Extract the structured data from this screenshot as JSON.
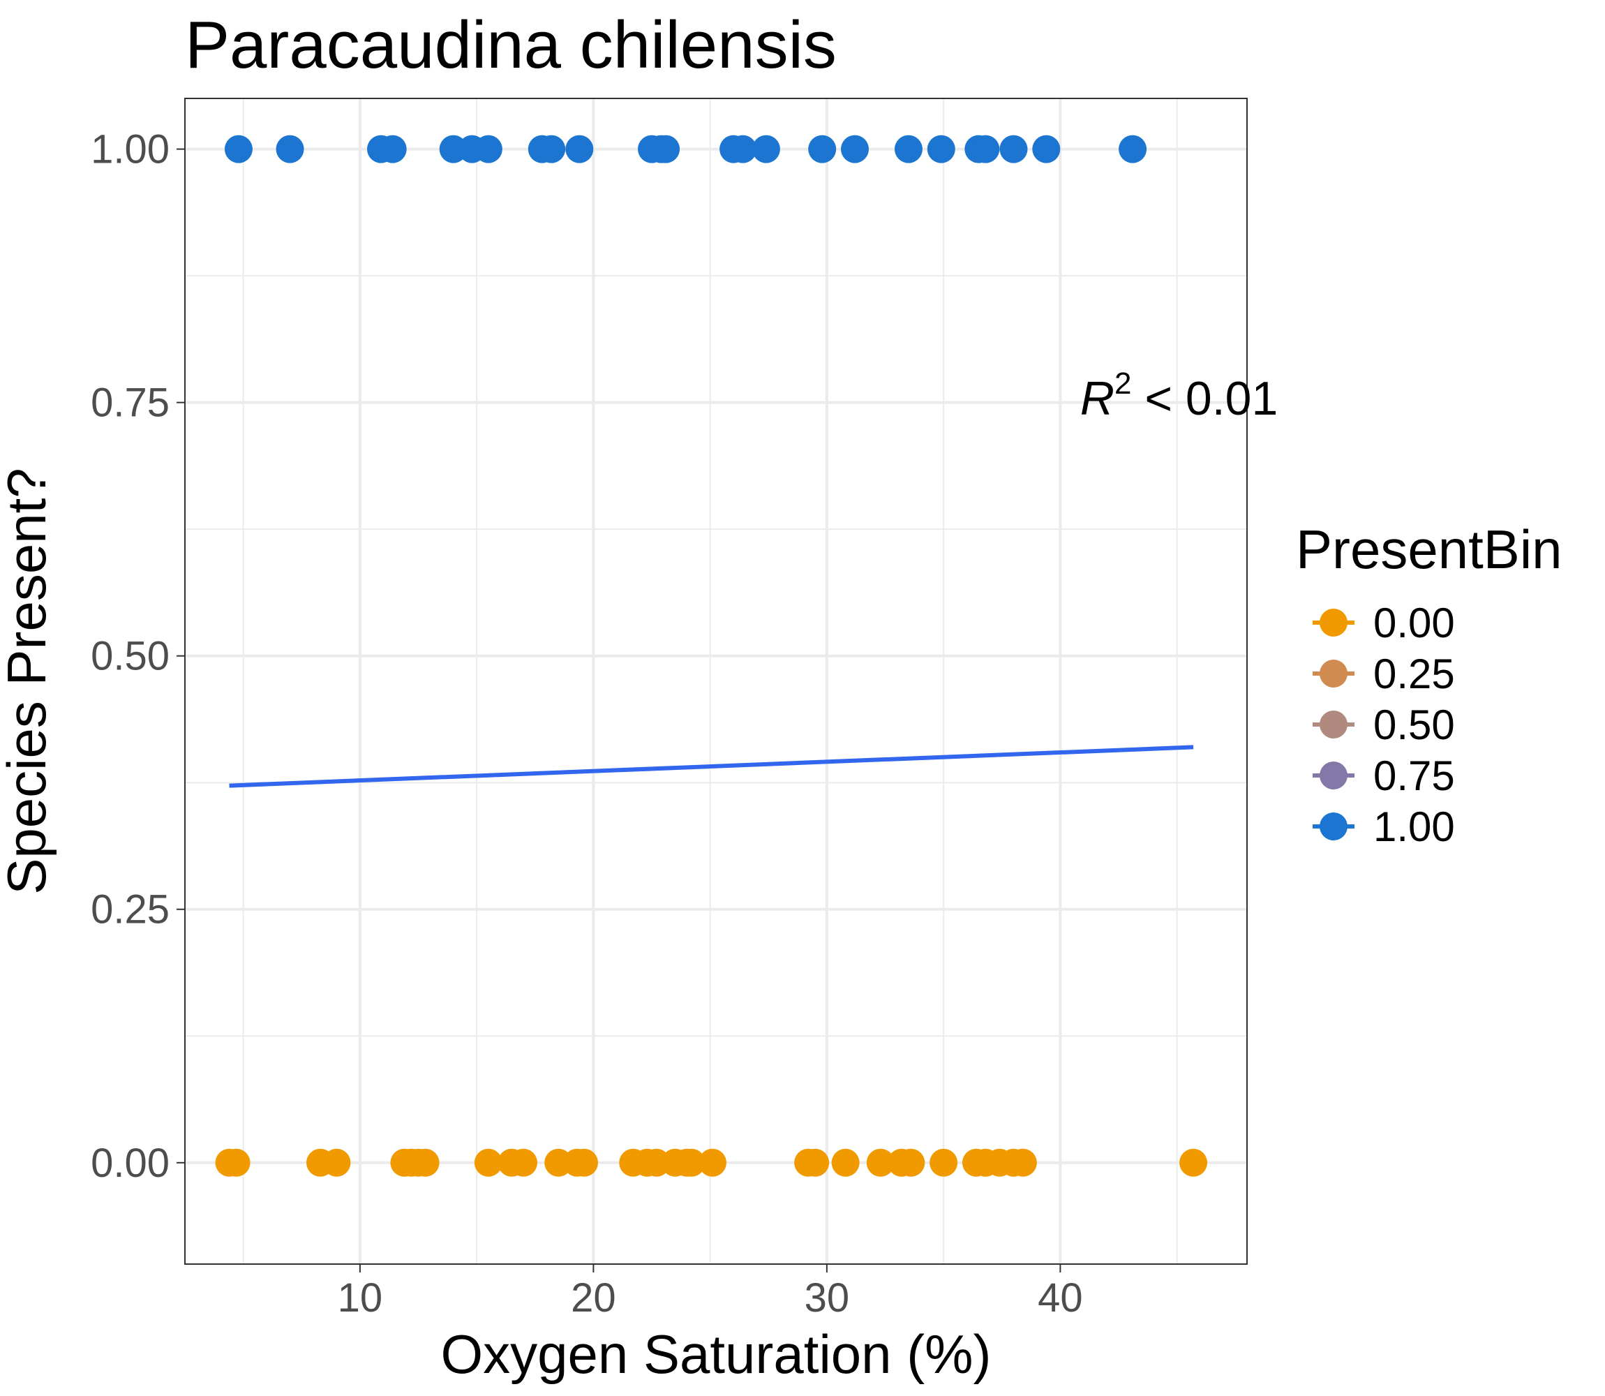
{
  "chart_data": {
    "type": "scatter",
    "title": "Paracaudina chilensis",
    "xlabel": "Oxygen Saturation (%)",
    "ylabel": "Species Present?",
    "xlim": [
      2.5,
      48
    ],
    "ylim": [
      -0.1,
      1.05
    ],
    "x_ticks": [
      10,
      20,
      30,
      40
    ],
    "x_minor_ticks": [
      5,
      15,
      25,
      35,
      45
    ],
    "y_ticks": [
      0.0,
      0.25,
      0.5,
      0.75,
      1.0
    ],
    "y_tick_labels": [
      "0.00",
      "0.25",
      "0.50",
      "0.75",
      "1.00"
    ],
    "y_minor_ticks": [
      0.125,
      0.375,
      0.625,
      0.875
    ],
    "grid": true,
    "annotation": {
      "base": "R",
      "sup": "2",
      "rest": " < 0.01",
      "x": 42,
      "y": 0.74
    },
    "legend": {
      "title": "PresentBin",
      "position": "right",
      "entries": [
        {
          "label": "0.00",
          "color": "#F09A00"
        },
        {
          "label": "0.25",
          "color": "#D08C50"
        },
        {
          "label": "0.50",
          "color": "#B08A7E"
        },
        {
          "label": "0.75",
          "color": "#8378A8"
        },
        {
          "label": "1.00",
          "color": "#1C75D0"
        }
      ]
    },
    "series": [
      {
        "value": 1.0,
        "color": "#1C75D0",
        "x": [
          4.8,
          7.0,
          10.9,
          11.4,
          14.0,
          14.8,
          15.5,
          17.8,
          18.2,
          19.4,
          22.5,
          22.9,
          23.1,
          26.0,
          26.4,
          27.4,
          29.8,
          31.2,
          33.5,
          34.9,
          36.5,
          36.8,
          38.0,
          39.4,
          43.1
        ],
        "y": [
          1,
          1,
          1,
          1,
          1,
          1,
          1,
          1,
          1,
          1,
          1,
          1,
          1,
          1,
          1,
          1,
          1,
          1,
          1,
          1,
          1,
          1,
          1,
          1,
          1
        ]
      },
      {
        "value": 0.0,
        "color": "#F09A00",
        "x": [
          4.4,
          4.7,
          8.3,
          9.0,
          11.9,
          12.2,
          12.5,
          12.8,
          15.5,
          16.5,
          17.0,
          18.5,
          19.3,
          19.6,
          21.7,
          22.3,
          22.7,
          23.5,
          24.0,
          24.2,
          25.1,
          29.2,
          29.5,
          30.8,
          32.3,
          33.2,
          33.6,
          35.0,
          36.4,
          36.8,
          37.4,
          38.0,
          38.4,
          45.7
        ],
        "y": [
          0,
          0,
          0,
          0,
          0,
          0,
          0,
          0,
          0,
          0,
          0,
          0,
          0,
          0,
          0,
          0,
          0,
          0,
          0,
          0,
          0,
          0,
          0,
          0,
          0,
          0,
          0,
          0,
          0,
          0,
          0,
          0,
          0,
          0
        ]
      }
    ],
    "trendline": {
      "color": "#3366EE",
      "x": [
        4.4,
        45.7
      ],
      "y": [
        0.372,
        0.41
      ]
    }
  }
}
